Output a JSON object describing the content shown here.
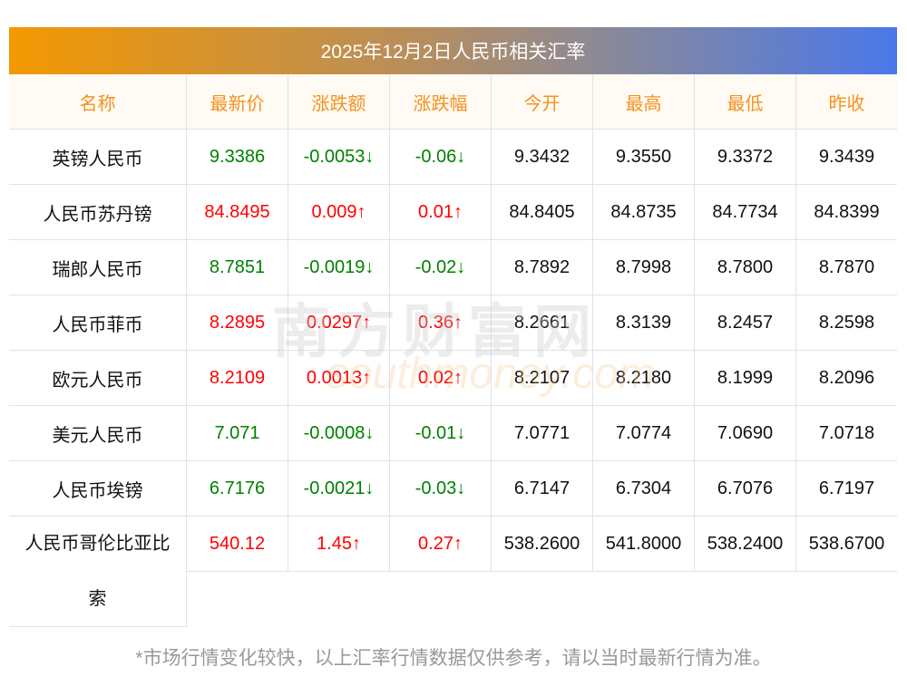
{
  "title": "2025年12月2日人民币相关汇率",
  "headers": [
    "名称",
    "最新价",
    "涨跌额",
    "涨跌幅",
    "今开",
    "最高",
    "最低",
    "昨收"
  ],
  "rows": [
    {
      "name": "英镑人民币",
      "dir": "down",
      "vals": [
        "9.3386",
        "-0.0053↓",
        "-0.06↓",
        "9.3432",
        "9.3550",
        "9.3372",
        "9.3439"
      ]
    },
    {
      "name": "人民币苏丹镑",
      "dir": "up",
      "vals": [
        "84.8495",
        "0.009↑",
        "0.01↑",
        "84.8405",
        "84.8735",
        "84.7734",
        "84.8399"
      ]
    },
    {
      "name": "瑞郎人民币",
      "dir": "down",
      "vals": [
        "8.7851",
        "-0.0019↓",
        "-0.02↓",
        "8.7892",
        "8.7998",
        "8.7800",
        "8.7870"
      ]
    },
    {
      "name": "人民币菲币",
      "dir": "up",
      "vals": [
        "8.2895",
        "0.0297↑",
        "0.36↑",
        "8.2661",
        "8.3139",
        "8.2457",
        "8.2598"
      ]
    },
    {
      "name": "欧元人民币",
      "dir": "up",
      "vals": [
        "8.2109",
        "0.0013↑",
        "0.02↑",
        "8.2107",
        "8.2180",
        "8.1999",
        "8.2096"
      ]
    },
    {
      "name": "美元人民币",
      "dir": "down",
      "vals": [
        "7.071",
        "-0.0008↓",
        "-0.01↓",
        "7.0771",
        "7.0774",
        "7.0690",
        "7.0718"
      ]
    },
    {
      "name": "人民币埃镑",
      "dir": "down",
      "vals": [
        "6.7176",
        "-0.0021↓",
        "-0.03↓",
        "6.7147",
        "6.7304",
        "6.7076",
        "6.7197"
      ]
    }
  ],
  "last_row": {
    "name_line1": "人民币哥伦比亚比",
    "name_line2": "索",
    "dir": "up",
    "vals": [
      "540.12",
      "1.45↑",
      "0.27↑",
      "538.2600",
      "541.8000",
      "538.2400",
      "538.6700"
    ]
  },
  "watermark": {
    "cn": "南方财富网",
    "en": "southmoney.com"
  },
  "note": "*市场行情变化较快，以上汇率行情数据仅供参考，请以当时最新行情为准。",
  "colors": {
    "up": "#ff0000",
    "down": "#008000",
    "header_text": "#f39220"
  }
}
